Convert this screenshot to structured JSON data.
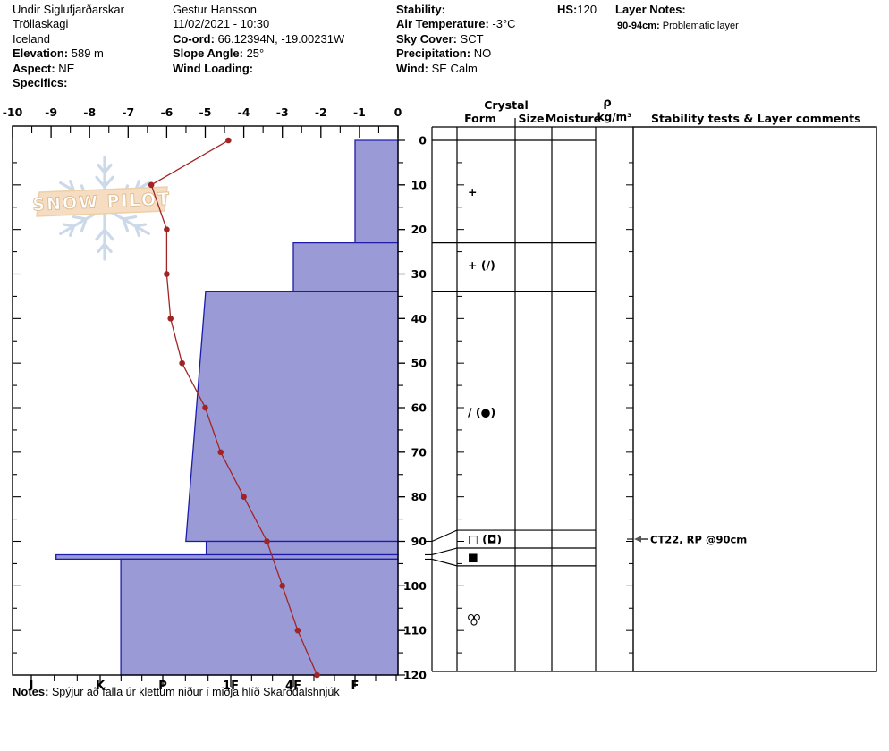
{
  "header": {
    "site": {
      "lines": [
        {
          "label": "",
          "value": "Undir Siglufjarðarskar"
        },
        {
          "label": "",
          "value": "Tröllaskagi"
        },
        {
          "label": "",
          "value": "Iceland"
        },
        {
          "label": "Elevation:",
          "value": "589 m"
        },
        {
          "label": "Aspect:",
          "value": "NE"
        },
        {
          "label": "Specifics:",
          "value": ""
        }
      ]
    },
    "observer": {
      "lines": [
        {
          "label": "",
          "value": "Gestur Hansson"
        },
        {
          "label": "",
          "value": "11/02/2021 - 10:30"
        },
        {
          "label": "Co-ord:",
          "value": "66.12394N, -19.00231W"
        },
        {
          "label": "Slope Angle:",
          "value": "25°"
        },
        {
          "label": "Wind Loading:",
          "value": ""
        }
      ]
    },
    "conditions": {
      "lines": [
        {
          "label": "Stability:",
          "value": ""
        },
        {
          "label": "Air Temperature:",
          "value": "-3°C"
        },
        {
          "label": "Sky Cover:",
          "value": "SCT"
        },
        {
          "label": "Precipitation:",
          "value": "NO"
        },
        {
          "label": "Wind:",
          "value": "SE Calm"
        }
      ]
    },
    "hs": {
      "label": "HS:",
      "value": "120"
    },
    "layer_notes": {
      "title": "Layer Notes:",
      "entries": [
        {
          "label": "90-94cm:",
          "text": "Problematic layer"
        }
      ]
    }
  },
  "watermark": {
    "text": "SNOW PILOT"
  },
  "chart_data": {
    "type": "bar",
    "subtype": "snow-profile",
    "title": "",
    "temperature_axis": {
      "position": "top",
      "unit": "°C",
      "min": -10,
      "max": 0,
      "major_tick_step": 1,
      "minor_tick_step": 0.5,
      "tick_labels": [
        -10,
        -9,
        -8,
        -7,
        -6,
        -5,
        -4,
        -3,
        -2,
        -1,
        0
      ]
    },
    "depth_axis": {
      "position": "right",
      "unit": "cm",
      "min": 0,
      "max": 120,
      "major_tick_step": 10,
      "minor_tick_step": 5,
      "tick_labels": [
        0,
        10,
        20,
        30,
        40,
        50,
        60,
        70,
        80,
        90,
        100,
        110,
        120
      ]
    },
    "hardness_axis": {
      "position": "bottom",
      "tick_labels": [
        "I",
        "K",
        "P",
        "1F",
        "4F",
        "F"
      ],
      "scale_values": {
        "F": 1,
        "4F": 2,
        "1F": 3,
        "P": 4,
        "K": 5,
        "I": 6
      }
    },
    "temperature_profile": {
      "depths_cm": [
        0,
        10,
        20,
        30,
        40,
        50,
        60,
        70,
        80,
        90,
        100,
        110,
        120
      ],
      "temps_c": [
        -4.4,
        -6.4,
        -6.0,
        -6.0,
        -5.9,
        -5.6,
        -5.0,
        -4.6,
        -4.0,
        -3.4,
        -3.0,
        -2.6,
        -2.1
      ]
    },
    "layers": [
      {
        "top_cm": 0,
        "bottom_cm": 23,
        "hardness": "F",
        "hardness_value_top": 1.0,
        "hardness_value_bottom": 1.0,
        "grain_form": "+",
        "form_label_depth_cm": 11.5
      },
      {
        "top_cm": 23,
        "bottom_cm": 34,
        "hardness": "4F",
        "hardness_value_top": 2.0,
        "hardness_value_bottom": 2.0,
        "grain_form": "+ (∕)",
        "form_label_depth_cm": 28
      },
      {
        "top_cm": 34,
        "bottom_cm": 90,
        "hardness": "1F-P",
        "hardness_value_top": 3.37,
        "hardness_value_bottom": 3.66,
        "grain_form": "∕ (●)",
        "form_label_depth_cm": 61
      },
      {
        "top_cm": 90,
        "bottom_cm": 93,
        "hardness": "1F-P",
        "hardness_value_top": 3.36,
        "hardness_value_bottom": 3.36,
        "grain_form": "□ (◘)",
        "expanded_row_cm": [
          87.5,
          91.5
        ]
      },
      {
        "top_cm": 93,
        "bottom_cm": 94,
        "hardness": "K-I",
        "hardness_value_top": 5.64,
        "hardness_value_bottom": 5.64,
        "grain_form": "■",
        "expanded_row_cm": [
          91.5,
          95.5
        ]
      },
      {
        "top_cm": 94,
        "bottom_cm": 120,
        "hardness": "K-P",
        "hardness_value_top": 4.67,
        "hardness_value_bottom": 4.67,
        "grain_form": "cluster",
        "form_label_depth_cm": 107.5
      }
    ]
  },
  "right_panel": {
    "headers": {
      "crystal": "Crystal",
      "form": "Form",
      "size": "Size",
      "moisture": "Moisture",
      "density_symbol": "ρ",
      "density_unit": "kg/m³",
      "comments": "Stability tests & Layer comments"
    },
    "stability_tests": [
      {
        "depth_cm": 90,
        "text": "CT22, RP @90cm"
      }
    ]
  },
  "notes": {
    "label": "Notes:",
    "text": "Spýjur að falla úr klettum niður í miðja hlíð Skarðdalshnjúk"
  },
  "colors": {
    "bar_fill": "#9a9ad6",
    "bar_stroke": "#1c1ca8",
    "temp_line": "#a12424",
    "snowflake": "#ccd9e8",
    "banner_fill": "#f6ddc1",
    "banner_stroke": "#ecd0a8",
    "logo_text_stroke": "#dcbb90"
  }
}
